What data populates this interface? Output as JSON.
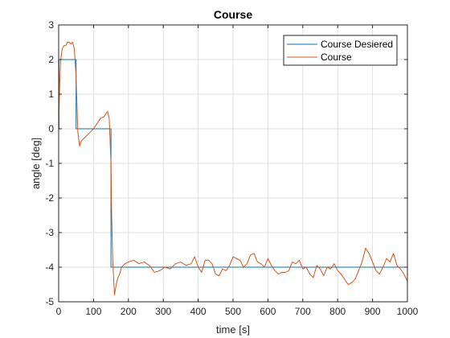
{
  "chart_data": {
    "type": "line",
    "title": "Course",
    "xlabel": "time [s]",
    "ylabel": "angle [deg]",
    "xlim": [
      0,
      1000
    ],
    "ylim": [
      -5,
      3
    ],
    "xticks": [
      0,
      100,
      200,
      300,
      400,
      500,
      600,
      700,
      800,
      900,
      1000
    ],
    "yticks": [
      3,
      2,
      1,
      0,
      -1,
      -2,
      -3,
      -4,
      -5
    ],
    "grid": true,
    "legend_position": "top-right",
    "series": [
      {
        "name": "Course Desiered",
        "color": "#0072BD",
        "x": [
          0,
          1,
          1,
          50,
          50,
          150,
          150,
          1000
        ],
        "y": [
          0,
          0,
          2,
          2,
          0,
          0,
          -4,
          -4
        ]
      },
      {
        "name": "Course",
        "color": "#D95319",
        "x": [
          0,
          3,
          6,
          10,
          15,
          20,
          25,
          30,
          35,
          40,
          45,
          50,
          55,
          60,
          65,
          70,
          80,
          90,
          100,
          110,
          120,
          130,
          140,
          145,
          150,
          152,
          155,
          160,
          165,
          170,
          175,
          180,
          190,
          200,
          215,
          230,
          245,
          260,
          275,
          290,
          305,
          320,
          335,
          350,
          365,
          380,
          390,
          400,
          410,
          420,
          430,
          440,
          450,
          460,
          470,
          480,
          490,
          500,
          510,
          520,
          530,
          540,
          550,
          560,
          570,
          580,
          590,
          600,
          610,
          620,
          630,
          640,
          650,
          660,
          670,
          680,
          690,
          700,
          710,
          720,
          730,
          740,
          750,
          760,
          770,
          780,
          790,
          800,
          810,
          820,
          830,
          840,
          850,
          860,
          870,
          880,
          890,
          900,
          910,
          920,
          930,
          940,
          950,
          960,
          970,
          980,
          990,
          1000
        ],
        "y": [
          0,
          1.3,
          2.0,
          2.3,
          2.4,
          2.4,
          2.5,
          2.5,
          2.45,
          2.5,
          2.3,
          1.5,
          -0.1,
          -0.5,
          -0.35,
          -0.3,
          -0.2,
          -0.1,
          0.0,
          0.15,
          0.3,
          0.35,
          0.5,
          0.3,
          -1.0,
          -2.5,
          -3.8,
          -4.8,
          -4.5,
          -4.3,
          -4.2,
          -4.0,
          -3.9,
          -3.85,
          -3.8,
          -3.9,
          -3.85,
          -3.95,
          -4.15,
          -4.1,
          -4.0,
          -4.05,
          -3.9,
          -3.85,
          -3.95,
          -3.9,
          -3.7,
          -4.0,
          -4.15,
          -3.8,
          -3.8,
          -3.9,
          -4.2,
          -4.25,
          -4.05,
          -4.1,
          -3.95,
          -3.7,
          -3.75,
          -3.8,
          -4.0,
          -3.9,
          -3.65,
          -3.6,
          -3.85,
          -3.9,
          -4.0,
          -3.75,
          -3.95,
          -4.1,
          -4.2,
          -4.15,
          -4.15,
          -4.1,
          -3.85,
          -3.9,
          -3.8,
          -4.05,
          -4.0,
          -4.2,
          -4.3,
          -3.95,
          -4.05,
          -4.25,
          -4.0,
          -4.05,
          -3.9,
          -4.1,
          -4.2,
          -4.35,
          -4.5,
          -4.45,
          -4.35,
          -4.1,
          -3.85,
          -3.45,
          -3.6,
          -3.85,
          -4.1,
          -4.2,
          -4.0,
          -3.75,
          -3.85,
          -3.6,
          -3.95,
          -4.05,
          -4.2,
          -4.4
        ]
      }
    ]
  }
}
